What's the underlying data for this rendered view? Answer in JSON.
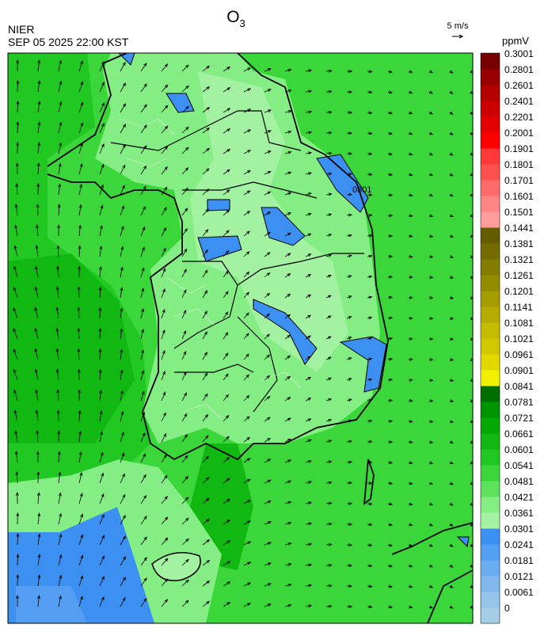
{
  "header": {
    "title": {
      "main": "O",
      "sub": "3"
    },
    "agency": "NIER",
    "datetime": "SEP 05 2025 22:00 KST",
    "wind_scale": "5 m/s"
  },
  "colorbar": {
    "unit": "ppmV",
    "levels": [
      0,
      0.0061,
      0.0121,
      0.0181,
      0.0241,
      0.0301,
      0.0361,
      0.0421,
      0.0481,
      0.0541,
      0.0601,
      0.0661,
      0.0721,
      0.0781,
      0.0841,
      0.0901,
      0.0961,
      0.1021,
      0.1081,
      0.1141,
      0.1201,
      0.1261,
      0.1321,
      0.1381,
      0.1441,
      0.1501,
      0.1601,
      0.1701,
      0.1801,
      0.1901,
      0.2001,
      0.2201,
      0.2401,
      0.2601,
      0.2801,
      0.3001
    ],
    "colors": [
      "#a6cde6",
      "#94c4ea",
      "#80b8ee",
      "#6aacf0",
      "#539ef2",
      "#3c90f2",
      "#a2f2a2",
      "#84ee84",
      "#5ee25e",
      "#3ad63a",
      "#22c822",
      "#12b812",
      "#04a804",
      "#009400",
      "#006e00",
      "#f0f000",
      "#e2d800",
      "#d2c800",
      "#c4bc00",
      "#b4ac00",
      "#a49c00",
      "#948c00",
      "#847c00",
      "#746c00",
      "#645c00",
      "#ff9c9c",
      "#ff8484",
      "#ff6a6a",
      "#ff5050",
      "#ff3838",
      "#ff0000",
      "#e40000",
      "#cc0000",
      "#b40000",
      "#980000",
      "#760000"
    ]
  },
  "map": {
    "contour_label": "0301"
  }
}
